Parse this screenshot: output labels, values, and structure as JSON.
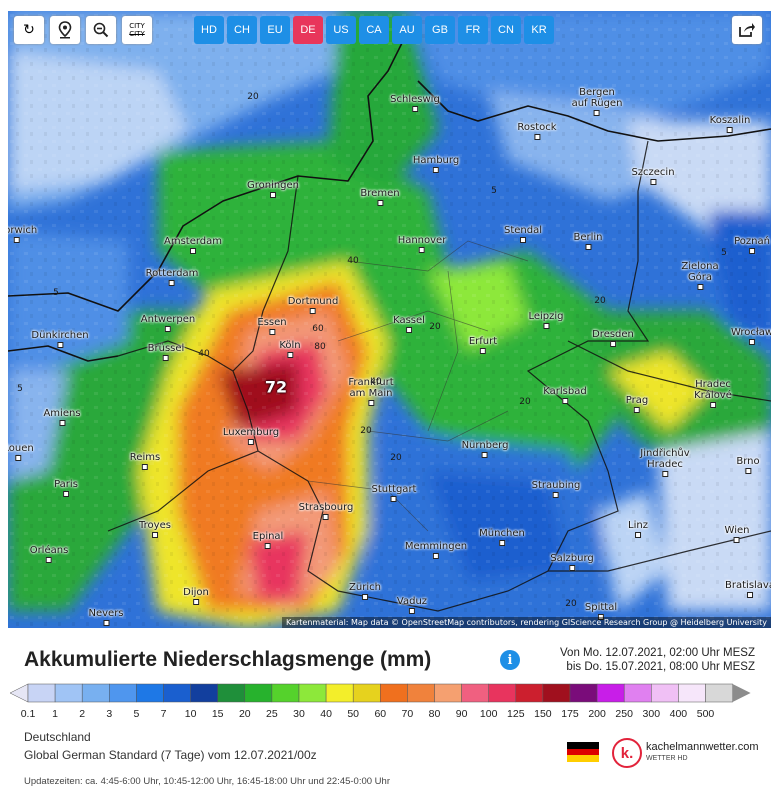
{
  "toolbar": {
    "buttons": [
      "refresh-icon",
      "location-pin-icon",
      "zoom-out-icon",
      "city-toggle-icon"
    ],
    "city_label": "CITY",
    "regions": [
      "HD",
      "CH",
      "EU",
      "DE",
      "US",
      "CA",
      "AU",
      "GB",
      "FR",
      "CN",
      "KR"
    ],
    "active_region": "DE"
  },
  "map": {
    "cities": [
      {
        "name": "Schleswig"
      },
      {
        "name": "Bergen\nauf Rügen"
      },
      {
        "name": "Rostock"
      },
      {
        "name": "Koszalin"
      },
      {
        "name": "Hamburg"
      },
      {
        "name": "Szczecin"
      },
      {
        "name": "Groningen"
      },
      {
        "name": "Bremen"
      },
      {
        "name": "Amsterdam"
      },
      {
        "name": "Hannover"
      },
      {
        "name": "Stendal"
      },
      {
        "name": "Berlin"
      },
      {
        "name": "Rotterdam"
      },
      {
        "name": "Zielona\nGóra"
      },
      {
        "name": "Dortmund"
      },
      {
        "name": "Antwerpen"
      },
      {
        "name": "Essen"
      },
      {
        "name": "Kassel"
      },
      {
        "name": "Leipzig"
      },
      {
        "name": "Dünkirchen"
      },
      {
        "name": "Brüssel"
      },
      {
        "name": "Köln"
      },
      {
        "name": "Erfurt"
      },
      {
        "name": "Dresden"
      },
      {
        "name": "Frankfurt\nam Main"
      },
      {
        "name": "Karlsbad"
      },
      {
        "name": "Hradec\nKrálové"
      },
      {
        "name": "Amiens"
      },
      {
        "name": "Prag"
      },
      {
        "name": "Luxemburg"
      },
      {
        "name": "Nürnberg"
      },
      {
        "name": "Reims"
      },
      {
        "name": "Jindřichův\nHradec"
      },
      {
        "name": "Brno"
      },
      {
        "name": "Paris"
      },
      {
        "name": "Straubing"
      },
      {
        "name": "Stuttgart"
      },
      {
        "name": "Troyes"
      },
      {
        "name": "Strasbourg"
      },
      {
        "name": "Linz"
      },
      {
        "name": "Epinal"
      },
      {
        "name": "München"
      },
      {
        "name": "Wien"
      },
      {
        "name": "Memmingen"
      },
      {
        "name": "Orléans"
      },
      {
        "name": "Salzburg"
      },
      {
        "name": "Dijon"
      },
      {
        "name": "Zürich"
      },
      {
        "name": "Vaduz"
      },
      {
        "name": "Spittal"
      },
      {
        "name": "Nevers"
      },
      {
        "name": "Bratislava"
      },
      {
        "name": "Wrocław"
      },
      {
        "name": "Poznań"
      },
      {
        "name": "Norwich"
      },
      {
        "name": "Rouen"
      }
    ],
    "max_value": "72",
    "attribution": "Kartenmaterial: Map data © OpenStreetMap contributors, rendering GIScience Research Group @ Heidelberg University"
  },
  "legend": {
    "title": "Akkumulierte Niederschlagsmenge (mm)",
    "period_from": "Von Mo. 12.07.2021, 02:00 Uhr MESZ",
    "period_to": "bis Do. 15.07.2021, 08:00 Uhr MESZ",
    "ticks": [
      "0.1",
      "1",
      "2",
      "3",
      "5",
      "7",
      "10",
      "15",
      "20",
      "25",
      "30",
      "40",
      "50",
      "60",
      "70",
      "80",
      "90",
      "100",
      "125",
      "150",
      "175",
      "200",
      "250",
      "300",
      "400",
      "500"
    ],
    "colors": [
      "#e6e6f5",
      "#c8d4f5",
      "#a0c4f5",
      "#78b0f0",
      "#4f96ee",
      "#1e78e6",
      "#1a5fcf",
      "#123f9e",
      "#1f8f3a",
      "#27b22d",
      "#55d22c",
      "#8de83a",
      "#f3ee2a",
      "#e6d21e",
      "#f0701e",
      "#f0823c",
      "#f5a070",
      "#f06080",
      "#e8345e",
      "#cc1f2e",
      "#a0101e",
      "#7a0c7a",
      "#c81ee8",
      "#e080f0",
      "#f0c0f5",
      "#f6e6fa",
      "#d8d8d8",
      "#8c8c8c"
    ]
  },
  "info": {
    "region": "Deutschland",
    "model": "Global German Standard  (7 Tage)  vom 12.07.2021/00z",
    "updates": "Updatezeiten: ca. 4:45-6:00 Uhr, 10:45-12:00 Uhr, 16:45-18:00 Uhr und 22:45-0:00 Uhr",
    "brand": "kachelmannwetter.com",
    "brand_sub": "WETTER HD"
  }
}
